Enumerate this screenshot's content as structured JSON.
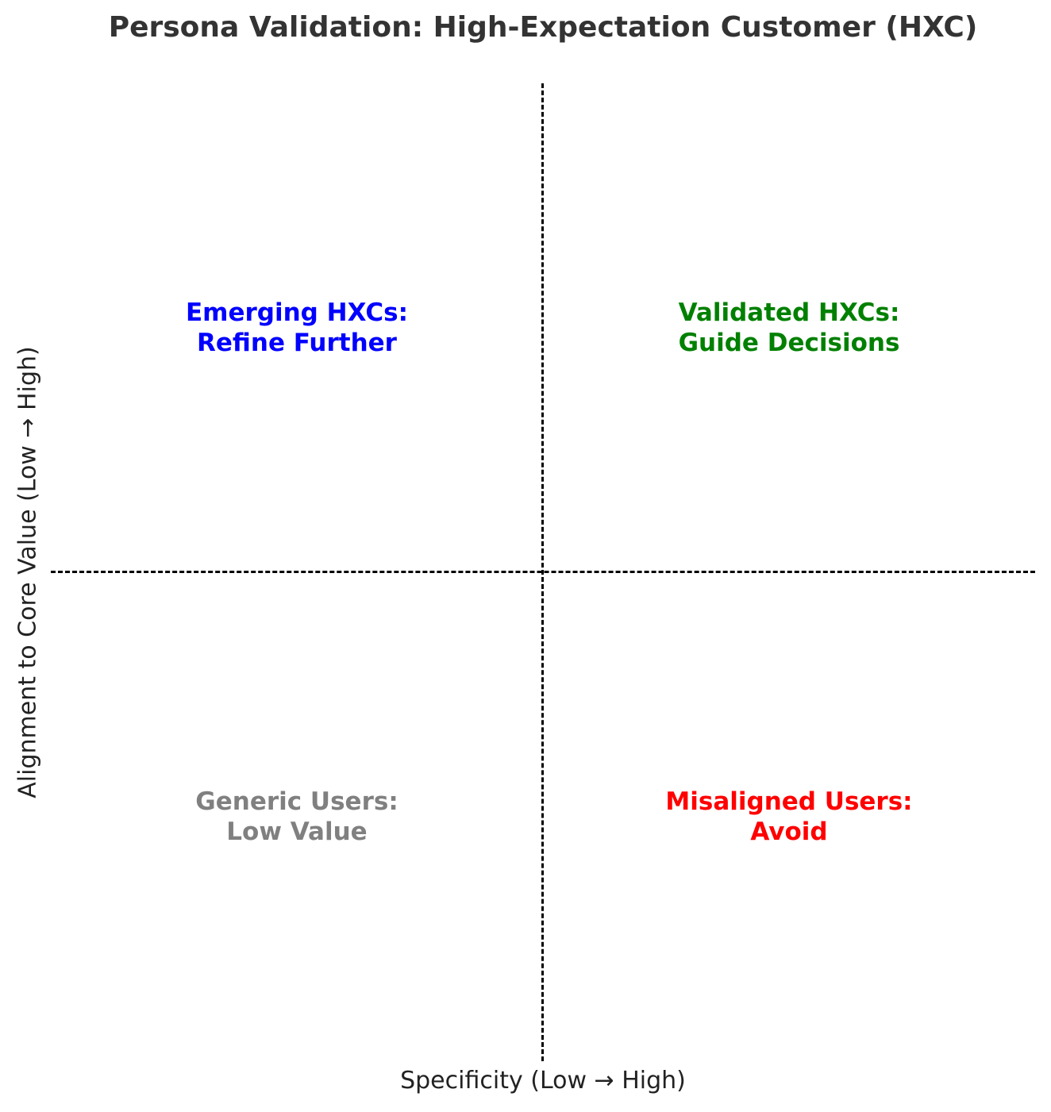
{
  "title": "Persona Validation: High-Expectation Customer (HXC)",
  "xlabel": "Specificity (Low → High)",
  "ylabel": "Alignment to Core Value (Low → High)",
  "quadrants": {
    "top_left": {
      "text": "Emerging HXCs:\nRefine Further",
      "color": "#0000ff"
    },
    "top_right": {
      "text": "Validated HXCs:\nGuide Decisions",
      "color": "#008000"
    },
    "bottom_left": {
      "text": "Generic Users:\nLow Value",
      "color": "#808080"
    },
    "bottom_right": {
      "text": "Misaligned Users:\nAvoid",
      "color": "#ff0000"
    }
  }
}
